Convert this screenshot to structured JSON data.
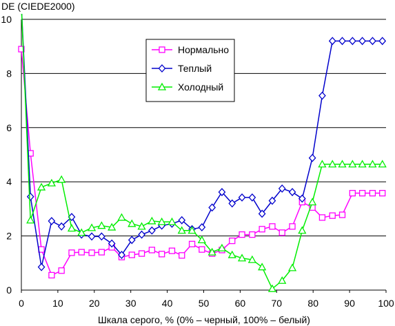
{
  "chart_data": {
    "type": "line",
    "ylabel": "DE (CIEDE2000)",
    "xlabel": "Шкала серого, % (0% – черный, 100% – белый)",
    "xlim": [
      0,
      100
    ],
    "ylim": [
      0,
      10
    ],
    "xticks": [
      0,
      10,
      20,
      30,
      40,
      50,
      60,
      70,
      80,
      90,
      100
    ],
    "yticks": [
      0,
      2,
      4,
      6,
      8,
      10
    ],
    "grid": "horizontal",
    "legend_position": "top-center",
    "x": [
      0,
      2.5,
      5.5,
      8.3,
      11,
      13.8,
      16.5,
      19.3,
      22,
      24.8,
      27.5,
      30.3,
      33,
      35.8,
      38.5,
      41.3,
      44,
      46.8,
      49.5,
      52.3,
      55,
      57.8,
      60.5,
      63.3,
      66,
      68.8,
      71.5,
      74.3,
      77,
      79.8,
      82.5,
      85.3,
      88,
      90.8,
      93.5,
      96.3,
      99
    ],
    "series": [
      {
        "name": "Нормально",
        "color": "#ff00ff",
        "marker": "square",
        "values": [
          8.9,
          5.05,
          1.5,
          0.55,
          0.72,
          1.38,
          1.4,
          1.38,
          1.4,
          1.58,
          1.22,
          1.3,
          1.35,
          1.48,
          1.33,
          1.45,
          1.28,
          1.7,
          1.5,
          1.35,
          1.48,
          1.82,
          2.05,
          2.05,
          2.25,
          2.35,
          2.12,
          2.35,
          3.25,
          3.05,
          2.68,
          2.75,
          2.78,
          3.58,
          3.58,
          3.58,
          3.58
        ]
      },
      {
        "name": "Теплый",
        "color": "#0000cc",
        "marker": "diamond",
        "values": [
          10.5,
          3.45,
          0.85,
          2.55,
          2.35,
          2.7,
          2.05,
          1.98,
          1.98,
          1.72,
          1.3,
          1.85,
          2.05,
          2.2,
          2.38,
          2.45,
          2.58,
          2.25,
          2.32,
          3.05,
          3.62,
          3.2,
          3.42,
          3.42,
          2.82,
          3.3,
          3.75,
          3.62,
          3.38,
          4.88,
          7.18,
          9.2,
          9.2,
          9.2,
          9.2,
          9.2,
          9.2
        ]
      },
      {
        "name": "Холодный",
        "color": "#00ee00",
        "marker": "triangle",
        "values": [
          10.5,
          2.58,
          3.8,
          3.95,
          4.08,
          2.28,
          2.12,
          2.3,
          2.38,
          2.32,
          2.68,
          2.45,
          2.35,
          2.55,
          2.52,
          2.52,
          2.2,
          2.2,
          1.85,
          1.4,
          1.55,
          1.3,
          1.18,
          1.12,
          0.85,
          0.05,
          0.35,
          0.82,
          2.2,
          3.25,
          4.65,
          4.65,
          4.65,
          4.65,
          4.65,
          4.65,
          4.65
        ]
      }
    ]
  }
}
